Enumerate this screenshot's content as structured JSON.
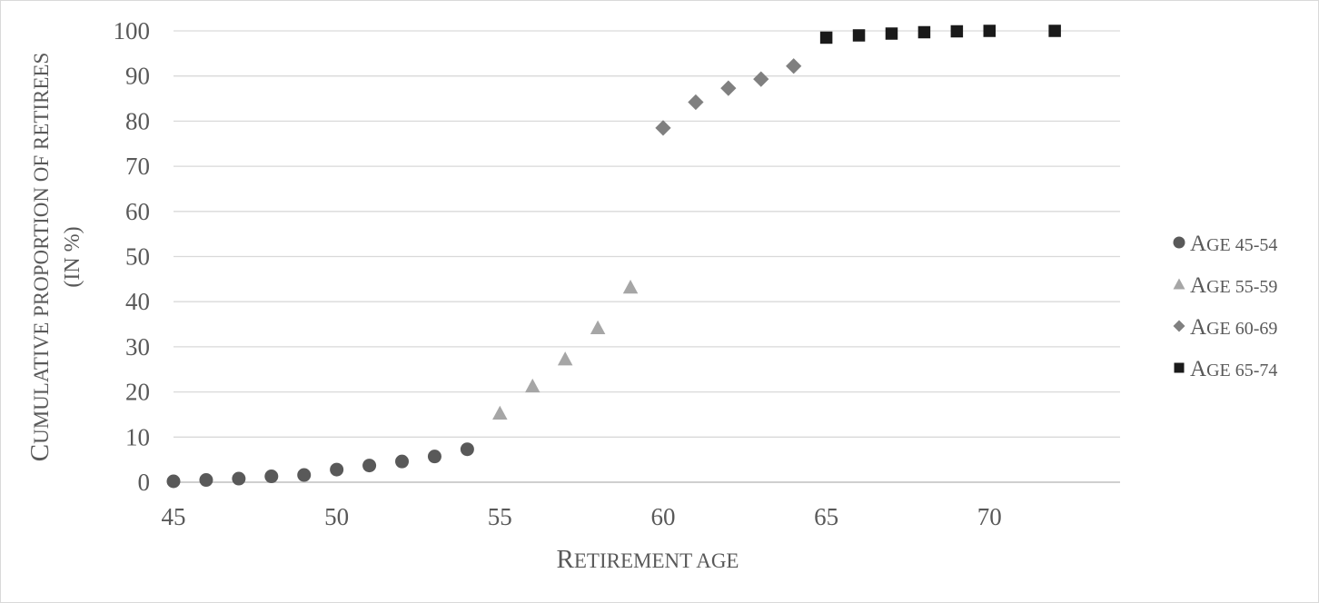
{
  "chart_data": {
    "type": "scatter",
    "title": "",
    "xlabel": {
      "cap": "R",
      "rest": "ETIREMENT AGE"
    },
    "ylabel": {
      "line1": {
        "cap": "C",
        "rest": "UMULATIVE PROPORTION OF RETIREES"
      },
      "line2": "(IN %)"
    },
    "xlim": [
      45,
      74
    ],
    "ylim": [
      0,
      100
    ],
    "x_ticks": [
      45,
      50,
      55,
      60,
      65,
      70
    ],
    "y_ticks": [
      0,
      10,
      20,
      30,
      40,
      50,
      60,
      70,
      80,
      90,
      100
    ],
    "grid": "horizontal",
    "legend_position": "right",
    "series": [
      {
        "name": {
          "cap": "A",
          "rest": "GE 45-54"
        },
        "marker": "circle",
        "color": "#595959",
        "x": [
          45,
          46,
          47,
          48,
          49,
          50,
          51,
          52,
          53,
          54
        ],
        "y": [
          0.2,
          0.5,
          0.8,
          1.3,
          1.6,
          2.8,
          3.7,
          4.6,
          5.7,
          7.3
        ]
      },
      {
        "name": {
          "cap": "A",
          "rest": "GE 55-59"
        },
        "marker": "triangle",
        "color": "#a6a6a6",
        "x": [
          55,
          56,
          57,
          58,
          59
        ],
        "y": [
          15.3,
          21.3,
          27.3,
          34.2,
          43.2
        ]
      },
      {
        "name": {
          "cap": "A",
          "rest": "GE 60-69"
        },
        "marker": "diamond",
        "color": "#808080",
        "x": [
          60,
          61,
          62,
          63,
          64
        ],
        "y": [
          78.5,
          84.2,
          87.3,
          89.3,
          92.2
        ]
      },
      {
        "name": {
          "cap": "A",
          "rest": "GE 65-74"
        },
        "marker": "square",
        "color": "#1a1a1a",
        "x": [
          65,
          66,
          67,
          68,
          69,
          70,
          72
        ],
        "y": [
          98.5,
          99.0,
          99.4,
          99.7,
          99.9,
          100,
          100
        ]
      }
    ]
  }
}
